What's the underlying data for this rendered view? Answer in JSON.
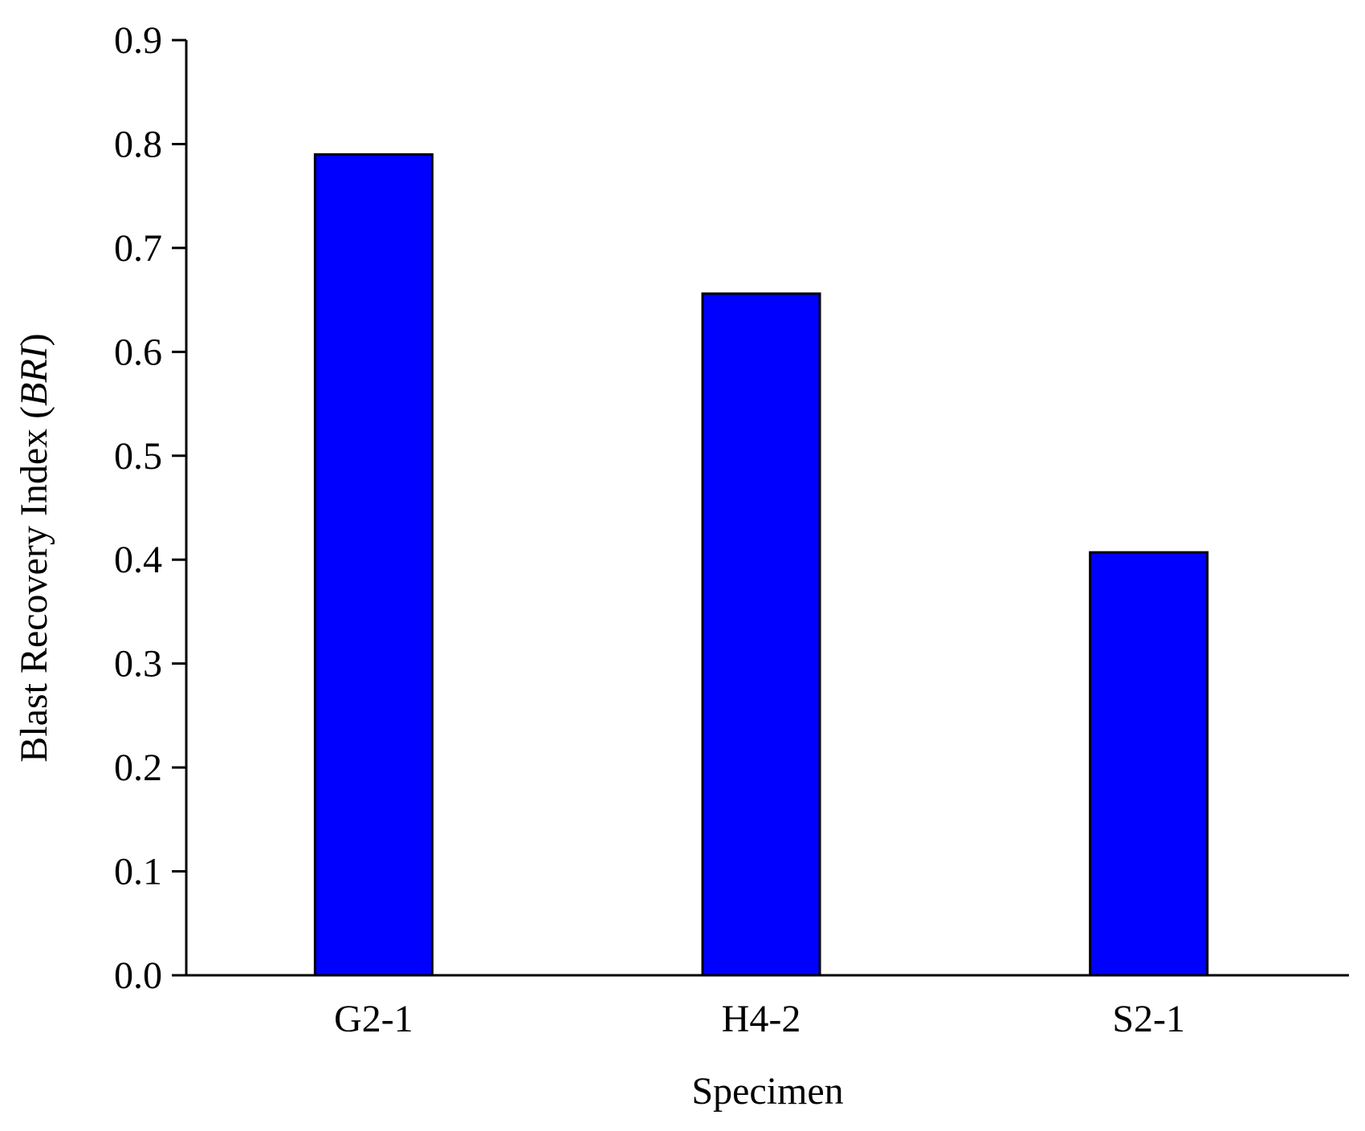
{
  "chart_data": {
    "type": "bar",
    "categories": [
      "G2-1",
      "H4-2",
      "S2-1"
    ],
    "values": [
      0.79,
      0.656,
      0.407
    ],
    "title": "",
    "xlabel": "Specimen",
    "ylabel": {
      "prefix": "Blast Recovery Index (",
      "italic": "BRI",
      "suffix": ")"
    },
    "ylim": [
      0.0,
      0.9
    ],
    "yticks": [
      "0.0",
      "0.1",
      "0.2",
      "0.3",
      "0.4",
      "0.5",
      "0.6",
      "0.7",
      "0.8",
      "0.9"
    ],
    "bar_color": "#0000FF",
    "grid": false,
    "legend": "none"
  }
}
